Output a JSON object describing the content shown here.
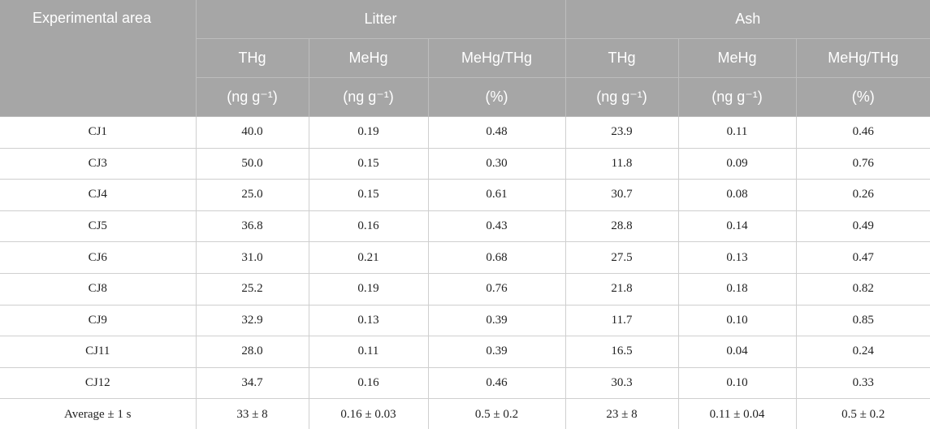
{
  "header": {
    "stub": "Experimental area",
    "groups": [
      "Litter",
      "Ash"
    ],
    "columns": [
      "THg",
      "MeHg",
      "MeHg/THg",
      "THg",
      "MeHg",
      "MeHg/THg"
    ],
    "units": [
      "(ng g⁻¹)",
      "(ng g⁻¹)",
      "(%)",
      "(ng g⁻¹)",
      "(ng g⁻¹)",
      "(%)"
    ]
  },
  "table": {
    "rows": [
      [
        "CJ1",
        "40.0",
        "0.19",
        "0.48",
        "23.9",
        "0.11",
        "0.46"
      ],
      [
        "CJ3",
        "50.0",
        "0.15",
        "0.30",
        "11.8",
        "0.09",
        "0.76"
      ],
      [
        "CJ4",
        "25.0",
        "0.15",
        "0.61",
        "30.7",
        "0.08",
        "0.26"
      ],
      [
        "CJ5",
        "36.8",
        "0.16",
        "0.43",
        "28.8",
        "0.14",
        "0.49"
      ],
      [
        "CJ6",
        "31.0",
        "0.21",
        "0.68",
        "27.5",
        "0.13",
        "0.47"
      ],
      [
        "CJ8",
        "25.2",
        "0.19",
        "0.76",
        "21.8",
        "0.18",
        "0.82"
      ],
      [
        "CJ9",
        "32.9",
        "0.13",
        "0.39",
        "11.7",
        "0.10",
        "0.85"
      ],
      [
        "CJ11",
        "28.0",
        "0.11",
        "0.39",
        "16.5",
        "0.04",
        "0.24"
      ],
      [
        "CJ12",
        "34.7",
        "0.16",
        "0.46",
        "30.3",
        "0.10",
        "0.33"
      ],
      [
        "Average ± 1 s",
        "33 ± 8",
        "0.16 ± 0.03",
        "0.5 ± 0.2",
        "23 ± 8",
        "0.11 ± 0.04",
        "0.5 ± 0.2"
      ]
    ]
  }
}
